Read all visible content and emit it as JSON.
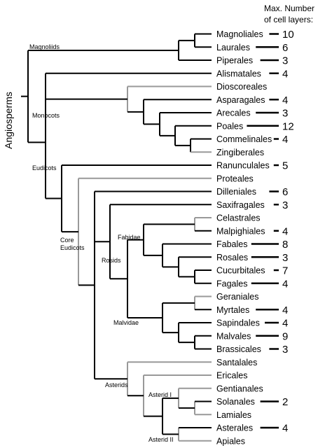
{
  "header": {
    "line1": "Max. Number",
    "line2": "of cell layers:"
  },
  "root_label": "Angiosperms",
  "colors": {
    "branch": "#000000",
    "branch_gray": "#999999"
  },
  "clade_labels": {
    "magnoliids": "Magnoliids",
    "monocots": "Monocots",
    "eudicots": "Eudicots",
    "core_line1": "Core",
    "core_line2": "Eudicots",
    "fabidae": "Fabidae",
    "rosids": "Rosids",
    "malvidae": "Malvidae",
    "asterids": "Asterids",
    "asterid1": "Asterid I",
    "asterid2": "Asterid II"
  },
  "taxa": [
    {
      "name": "Magnoliales",
      "layers": "10",
      "gray": false
    },
    {
      "name": "Laurales",
      "layers": "6",
      "gray": false
    },
    {
      "name": "Piperales",
      "layers": "3",
      "gray": false
    },
    {
      "name": "Alismatales",
      "layers": "4",
      "gray": false
    },
    {
      "name": "Dioscoreales",
      "layers": "",
      "gray": true
    },
    {
      "name": "Asparagales",
      "layers": "4",
      "gray": false
    },
    {
      "name": "Arecales",
      "layers": "3",
      "gray": false
    },
    {
      "name": "Poales",
      "layers": "12",
      "gray": false
    },
    {
      "name": "Commelinales",
      "layers": "4",
      "gray": false
    },
    {
      "name": "Zingiberales",
      "layers": "",
      "gray": true
    },
    {
      "name": "Ranunculales",
      "layers": "5",
      "gray": false
    },
    {
      "name": "Proteales",
      "layers": "",
      "gray": true
    },
    {
      "name": "Dilleniales",
      "layers": "6",
      "gray": false
    },
    {
      "name": "Saxifragales",
      "layers": "3",
      "gray": false
    },
    {
      "name": "Celastrales",
      "layers": "",
      "gray": true
    },
    {
      "name": "Malpighiales",
      "layers": "4",
      "gray": false
    },
    {
      "name": "Fabales",
      "layers": "8",
      "gray": false
    },
    {
      "name": "Rosales",
      "layers": "3",
      "gray": false
    },
    {
      "name": "Cucurbitales",
      "layers": "7",
      "gray": false
    },
    {
      "name": "Fagales",
      "layers": "4",
      "gray": false
    },
    {
      "name": "Geraniales",
      "layers": "",
      "gray": true
    },
    {
      "name": "Myrtales",
      "layers": "4",
      "gray": false
    },
    {
      "name": "Sapindales",
      "layers": "4",
      "gray": false
    },
    {
      "name": "Malvales",
      "layers": "9",
      "gray": false
    },
    {
      "name": "Brassicales",
      "layers": "3",
      "gray": false
    },
    {
      "name": "Santalales",
      "layers": "",
      "gray": true
    },
    {
      "name": "Ericales",
      "layers": "",
      "gray": true
    },
    {
      "name": "Gentianales",
      "layers": "",
      "gray": true
    },
    {
      "name": "Solanales",
      "layers": "2",
      "gray": false
    },
    {
      "name": "Lamiales",
      "layers": "",
      "gray": true
    },
    {
      "name": "Asterales",
      "layers": "4",
      "gray": false
    },
    {
      "name": "Apiales",
      "layers": "",
      "gray": true
    }
  ]
}
